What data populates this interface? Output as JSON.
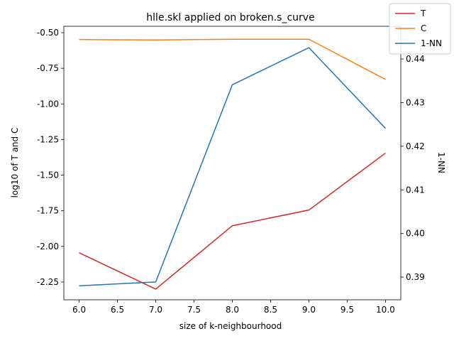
{
  "chart_data": {
    "type": "line",
    "title": "hlle.skl applied on broken.s_curve",
    "xlabel": "size of k-neighbourhood",
    "ylabel": "log10 of T and C",
    "ylabel_right": "1-NN",
    "x": [
      6,
      7,
      8,
      9,
      10
    ],
    "xlim": [
      5.8,
      10.2
    ],
    "ylim": [
      -2.375,
      -0.455
    ],
    "ylim_right": [
      0.3848,
      0.4475
    ],
    "x_ticks": [
      "6.0",
      "6.5",
      "7.0",
      "7.5",
      "8.0",
      "8.5",
      "9.0",
      "9.5",
      "10.0"
    ],
    "y_ticks": [
      "-2.25",
      "-2.00",
      "-1.75",
      "-1.50",
      "-1.25",
      "-1.00",
      "-0.75",
      "-0.50"
    ],
    "y_ticks_right": [
      "0.39",
      "0.40",
      "0.41",
      "0.42",
      "0.43",
      "0.44"
    ],
    "grid": false,
    "legend_placement": "top-right",
    "series": [
      {
        "name": "T",
        "axis": "left",
        "color": "#d62728",
        "values": [
          -2.045,
          -2.3,
          -1.855,
          -1.745,
          -1.345
        ]
      },
      {
        "name": "C",
        "axis": "left",
        "color": "#ff7f0e",
        "values": [
          -0.548,
          -0.551,
          -0.546,
          -0.546,
          -0.828
        ]
      },
      {
        "name": "1-NN",
        "axis": "right",
        "color": "#1f77b4",
        "values": [
          0.388,
          0.3889,
          0.4341,
          0.4426,
          0.4241
        ]
      }
    ]
  }
}
